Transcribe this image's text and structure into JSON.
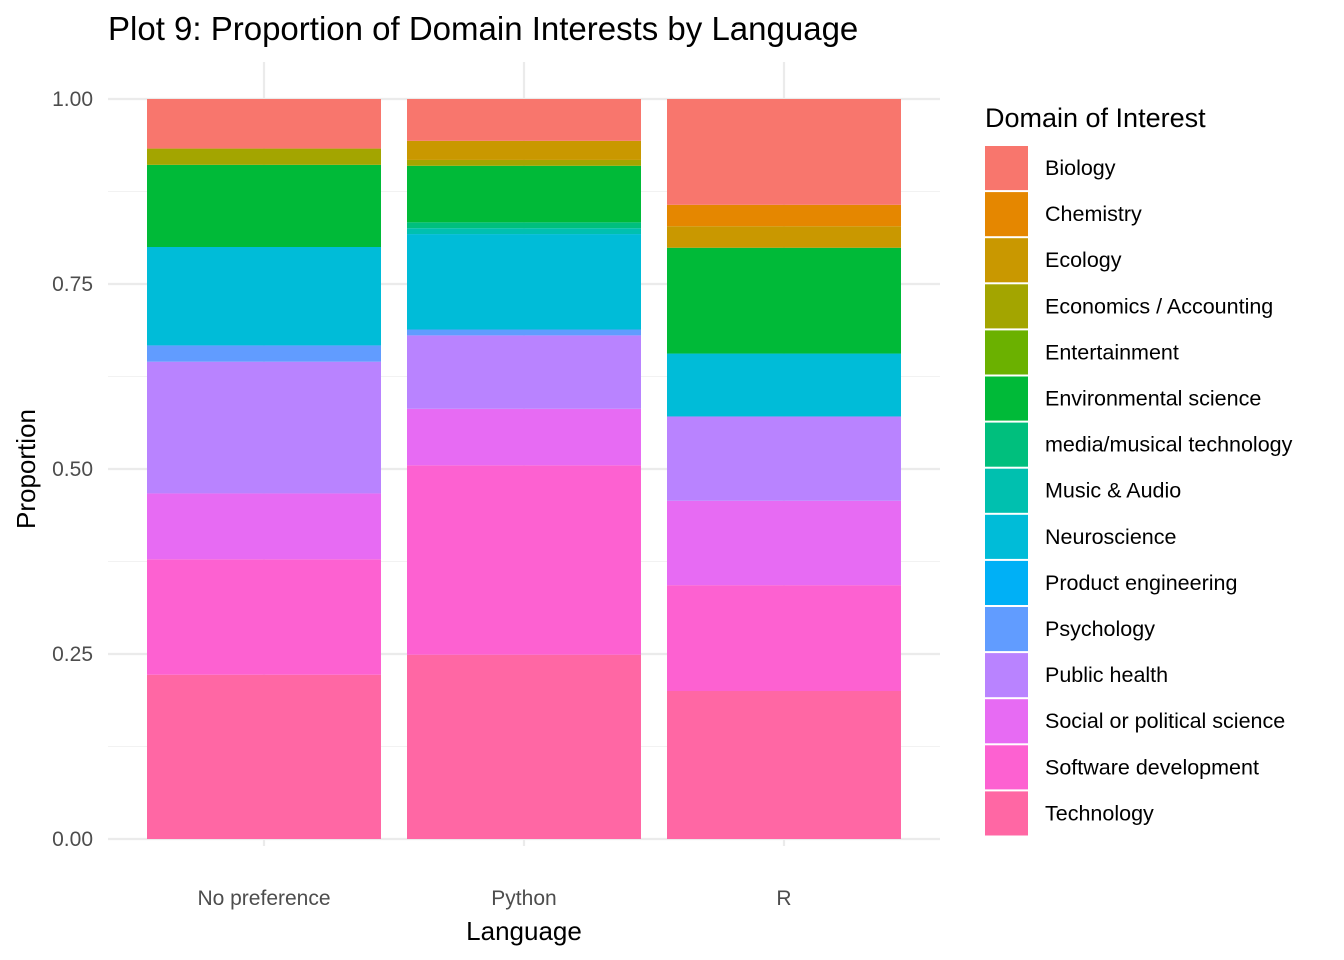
{
  "chart_data": {
    "type": "bar",
    "stacked": "proportion",
    "title": "Plot 9: Proportion of Domain Interests by Language",
    "xlabel": "Language",
    "ylabel": "Proportion",
    "ylim": [
      0,
      1
    ],
    "yticks": [
      "0.00",
      "0.25",
      "0.50",
      "0.75",
      "1.00"
    ],
    "grid": true,
    "legend": {
      "title": "Domain of Interest",
      "position": "right"
    },
    "categories": [
      "No preference",
      "Python",
      "R"
    ],
    "series": [
      {
        "name": "Biology",
        "color": "#F8766D",
        "values": [
          0.067,
          0.057,
          0.143
        ]
      },
      {
        "name": "Chemistry",
        "color": "#E58700",
        "values": [
          0,
          0,
          0.029
        ]
      },
      {
        "name": "Ecology",
        "color": "#C99800",
        "values": [
          0,
          0.026,
          0.029
        ]
      },
      {
        "name": "Economics / Accounting",
        "color": "#A3A500",
        "values": [
          0.022,
          0.008,
          0
        ]
      },
      {
        "name": "Entertainment",
        "color": "#6BB100",
        "values": [
          0,
          0,
          0
        ]
      },
      {
        "name": "Environmental science",
        "color": "#00BA38",
        "values": [
          0.111,
          0.077,
          0.143
        ]
      },
      {
        "name": "media/musical technology",
        "color": "#00BF7D",
        "values": [
          0,
          0.008,
          0
        ]
      },
      {
        "name": "Music & Audio",
        "color": "#00C0AF",
        "values": [
          0,
          0.008,
          0
        ]
      },
      {
        "name": "Neuroscience",
        "color": "#00BCD8",
        "values": [
          0.133,
          0.13,
          0.085
        ]
      },
      {
        "name": "Product engineering",
        "color": "#00B0F6",
        "values": [
          0,
          0,
          0
        ]
      },
      {
        "name": "Psychology",
        "color": "#619CFF",
        "values": [
          0.022,
          0.008,
          0
        ]
      },
      {
        "name": "Public health",
        "color": "#B983FF",
        "values": [
          0.178,
          0.1,
          0.114
        ]
      },
      {
        "name": "Social or political science",
        "color": "#E76BF3",
        "values": [
          0.089,
          0.077,
          0.114
        ]
      },
      {
        "name": "Software development",
        "color": "#FD61D1",
        "values": [
          0.156,
          0.258,
          0.143
        ]
      },
      {
        "name": "Technology",
        "color": "#FF67A4",
        "values": [
          0.222,
          0.251,
          0.2
        ]
      }
    ]
  }
}
